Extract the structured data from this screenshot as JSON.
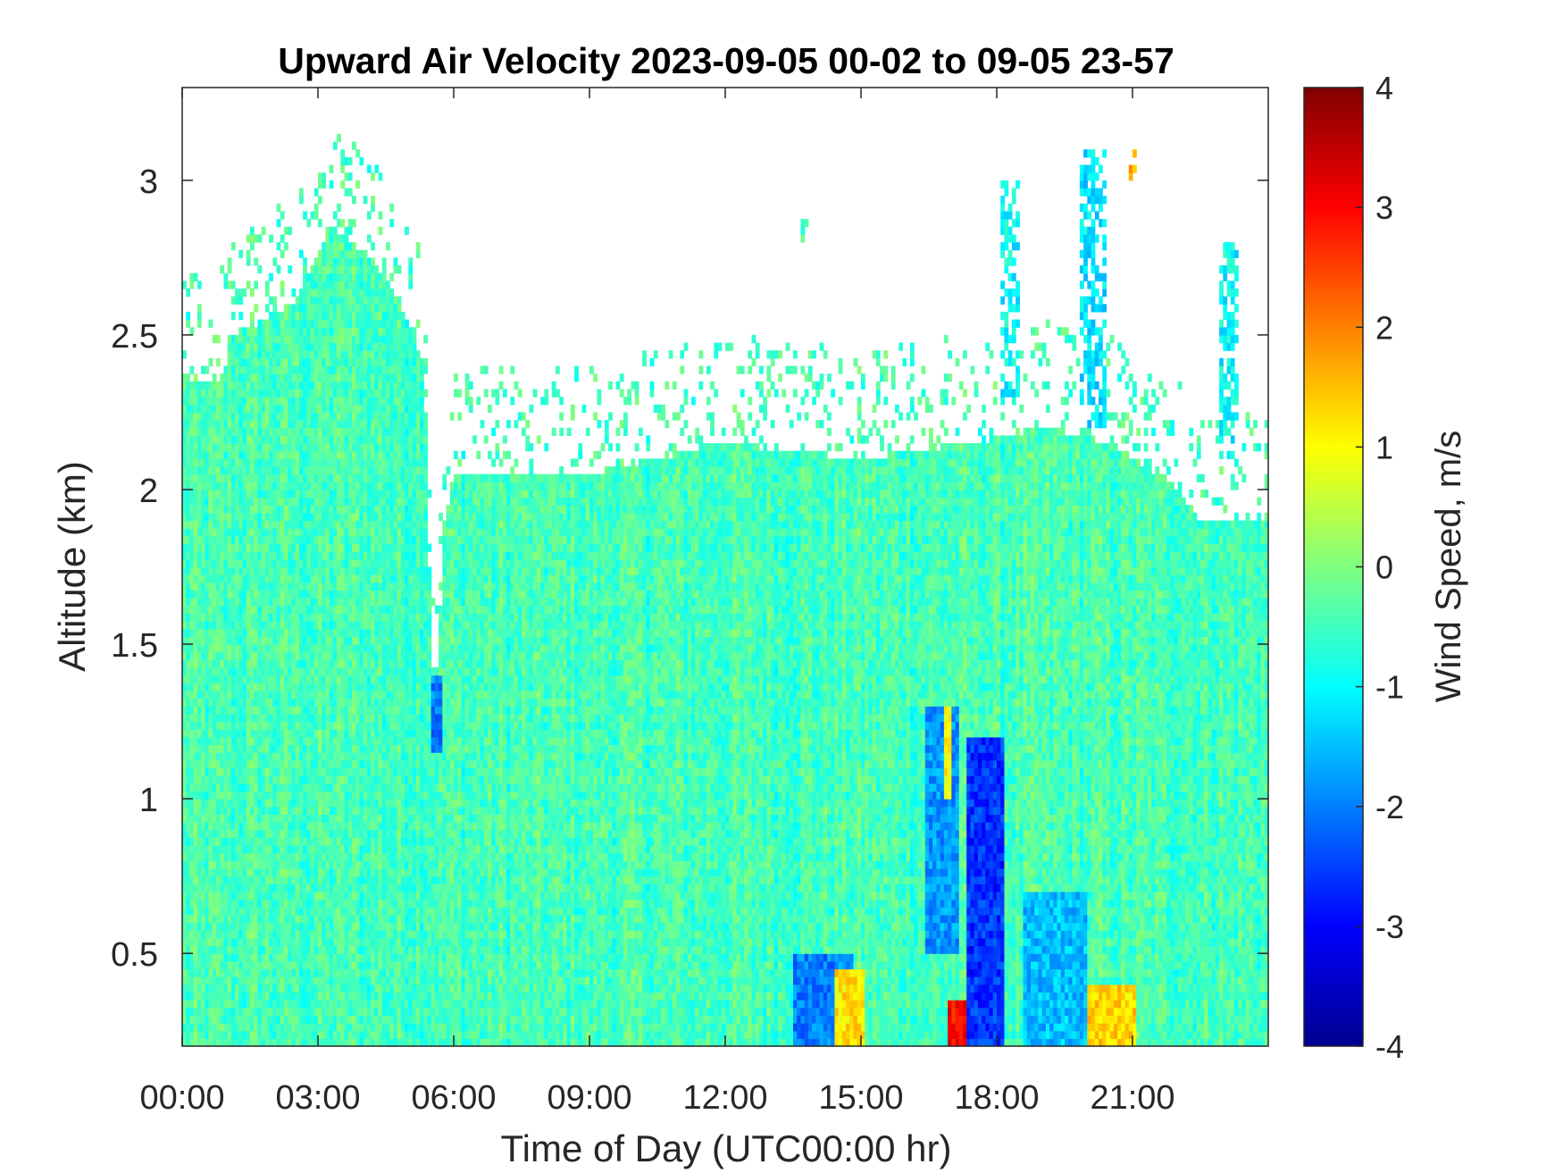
{
  "chart_data": {
    "type": "heatmap",
    "title": "Upward Air Velocity 2023-09-05 00-02 to 09-05 23-57",
    "xlabel": "Time of Day (UTC00:00 hr)",
    "ylabel": "Altitude (km)",
    "colorbar_label": "Wind Speed, m/s",
    "x_unit": "hours",
    "xlim": [
      0,
      24
    ],
    "ylim": [
      0.2,
      3.3
    ],
    "clim": [
      -4,
      4
    ],
    "colormap": "jet",
    "grid": false,
    "x_ticks": [
      {
        "value": 0,
        "label": "00:00"
      },
      {
        "value": 3,
        "label": "03:00"
      },
      {
        "value": 6,
        "label": "06:00"
      },
      {
        "value": 9,
        "label": "09:00"
      },
      {
        "value": 12,
        "label": "12:00"
      },
      {
        "value": 15,
        "label": "15:00"
      },
      {
        "value": 18,
        "label": "18:00"
      },
      {
        "value": 21,
        "label": "21:00"
      }
    ],
    "y_ticks": [
      {
        "value": 0.5,
        "label": "0.5"
      },
      {
        "value": 1,
        "label": "1"
      },
      {
        "value": 1.5,
        "label": "1.5"
      },
      {
        "value": 2,
        "label": "2"
      },
      {
        "value": 2.5,
        "label": "2.5"
      },
      {
        "value": 3,
        "label": "3"
      }
    ],
    "colorbar_ticks": [
      {
        "value": 4,
        "label": "4"
      },
      {
        "value": 3,
        "label": "3"
      },
      {
        "value": 2,
        "label": "2"
      },
      {
        "value": 1,
        "label": "1"
      },
      {
        "value": 0,
        "label": "0"
      },
      {
        "value": -1,
        "label": "-1"
      },
      {
        "value": -2,
        "label": "-2"
      },
      {
        "value": -3,
        "label": "-3"
      },
      {
        "value": -4,
        "label": "-4"
      }
    ],
    "data_ceiling_km": [
      {
        "t": 0.0,
        "top": 2.35
      },
      {
        "t": 0.8,
        "top": 2.35
      },
      {
        "t": 1.2,
        "top": 2.5
      },
      {
        "t": 2.5,
        "top": 2.6
      },
      {
        "t": 3.3,
        "top": 2.85
      },
      {
        "t": 4.2,
        "top": 2.75
      },
      {
        "t": 5.0,
        "top": 2.55
      },
      {
        "t": 5.35,
        "top": 2.4
      },
      {
        "t": 5.5,
        "top": 1.5
      },
      {
        "t": 5.6,
        "top": 1.3
      },
      {
        "t": 5.8,
        "top": 1.9
      },
      {
        "t": 6.0,
        "top": 2.05
      },
      {
        "t": 9.0,
        "top": 2.05
      },
      {
        "t": 12.0,
        "top": 2.15
      },
      {
        "t": 15.0,
        "top": 2.1
      },
      {
        "t": 17.5,
        "top": 2.15
      },
      {
        "t": 19.0,
        "top": 2.2
      },
      {
        "t": 20.5,
        "top": 2.15
      },
      {
        "t": 22.0,
        "top": 2.0
      },
      {
        "t": 22.5,
        "top": 1.9
      },
      {
        "t": 24.0,
        "top": 1.9
      }
    ],
    "features": [
      {
        "t_start": 13.5,
        "t_end": 14.8,
        "alt_start": 0.2,
        "alt_end": 0.5,
        "speed": -2.0
      },
      {
        "t_start": 14.4,
        "t_end": 15.1,
        "alt_start": 0.2,
        "alt_end": 0.45,
        "speed": 1.2
      },
      {
        "t_start": 16.9,
        "t_end": 17.4,
        "alt_start": 0.2,
        "alt_end": 0.35,
        "speed": 3.0
      },
      {
        "t_start": 17.3,
        "t_end": 18.2,
        "alt_start": 0.2,
        "alt_end": 1.2,
        "speed": -2.6
      },
      {
        "t_start": 16.4,
        "t_end": 17.2,
        "alt_start": 0.5,
        "alt_end": 1.3,
        "speed": -1.8
      },
      {
        "t_start": 20.0,
        "t_end": 21.1,
        "alt_start": 0.2,
        "alt_end": 0.4,
        "speed": 1.3
      },
      {
        "t_start": 18.6,
        "t_end": 20.0,
        "alt_start": 0.2,
        "alt_end": 0.7,
        "speed": -1.5
      },
      {
        "t_start": 5.5,
        "t_end": 5.75,
        "alt_start": 1.15,
        "alt_end": 1.4,
        "speed": -2.0
      },
      {
        "t_start": 16.8,
        "t_end": 17.0,
        "alt_start": 1.0,
        "alt_end": 1.3,
        "speed": 1.0
      },
      {
        "t_start": 19.8,
        "t_end": 20.4,
        "alt_start": 2.2,
        "alt_end": 3.1,
        "speed": -1.2
      },
      {
        "t_start": 18.1,
        "t_end": 18.5,
        "alt_start": 2.3,
        "alt_end": 3.0,
        "speed": -1.0
      },
      {
        "t_start": 20.9,
        "t_end": 21.1,
        "alt_start": 3.0,
        "alt_end": 3.1,
        "speed": 1.5
      },
      {
        "t_start": 13.7,
        "t_end": 13.8,
        "alt_start": 2.8,
        "alt_end": 2.9,
        "speed": -0.4
      },
      {
        "t_start": 22.9,
        "t_end": 23.3,
        "alt_start": 2.1,
        "alt_end": 2.8,
        "speed": -1.0
      }
    ]
  }
}
